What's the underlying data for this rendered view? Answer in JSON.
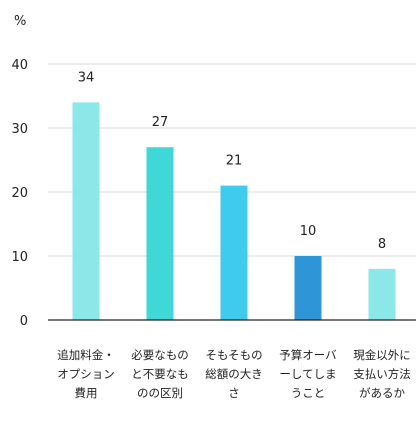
{
  "chart_data": {
    "type": "bar",
    "title": "",
    "xlabel": "",
    "ylabel": "%",
    "ylim": [
      0,
      40
    ],
    "yticks": [
      0,
      10,
      20,
      30,
      40
    ],
    "grid": true,
    "categories": [
      [
        "追加料金・",
        "オプション",
        "費用"
      ],
      [
        "必要なもの",
        "と不要なも",
        "のの区別"
      ],
      [
        "そもそもの",
        "総額の大き",
        "さ"
      ],
      [
        "予算オーバ",
        "ーしてしま",
        "うこと"
      ],
      [
        "現金以外に",
        "支払い方法",
        "があるか"
      ]
    ],
    "values": [
      34,
      27,
      21,
      10,
      8
    ],
    "colors": [
      "#8ce8e8",
      "#3fd8d6",
      "#3ecbee",
      "#2e96d6",
      "#8ce8e8"
    ],
    "colors_meta": {
      "grid": "#d8d8d8",
      "axis": "#222222"
    }
  }
}
